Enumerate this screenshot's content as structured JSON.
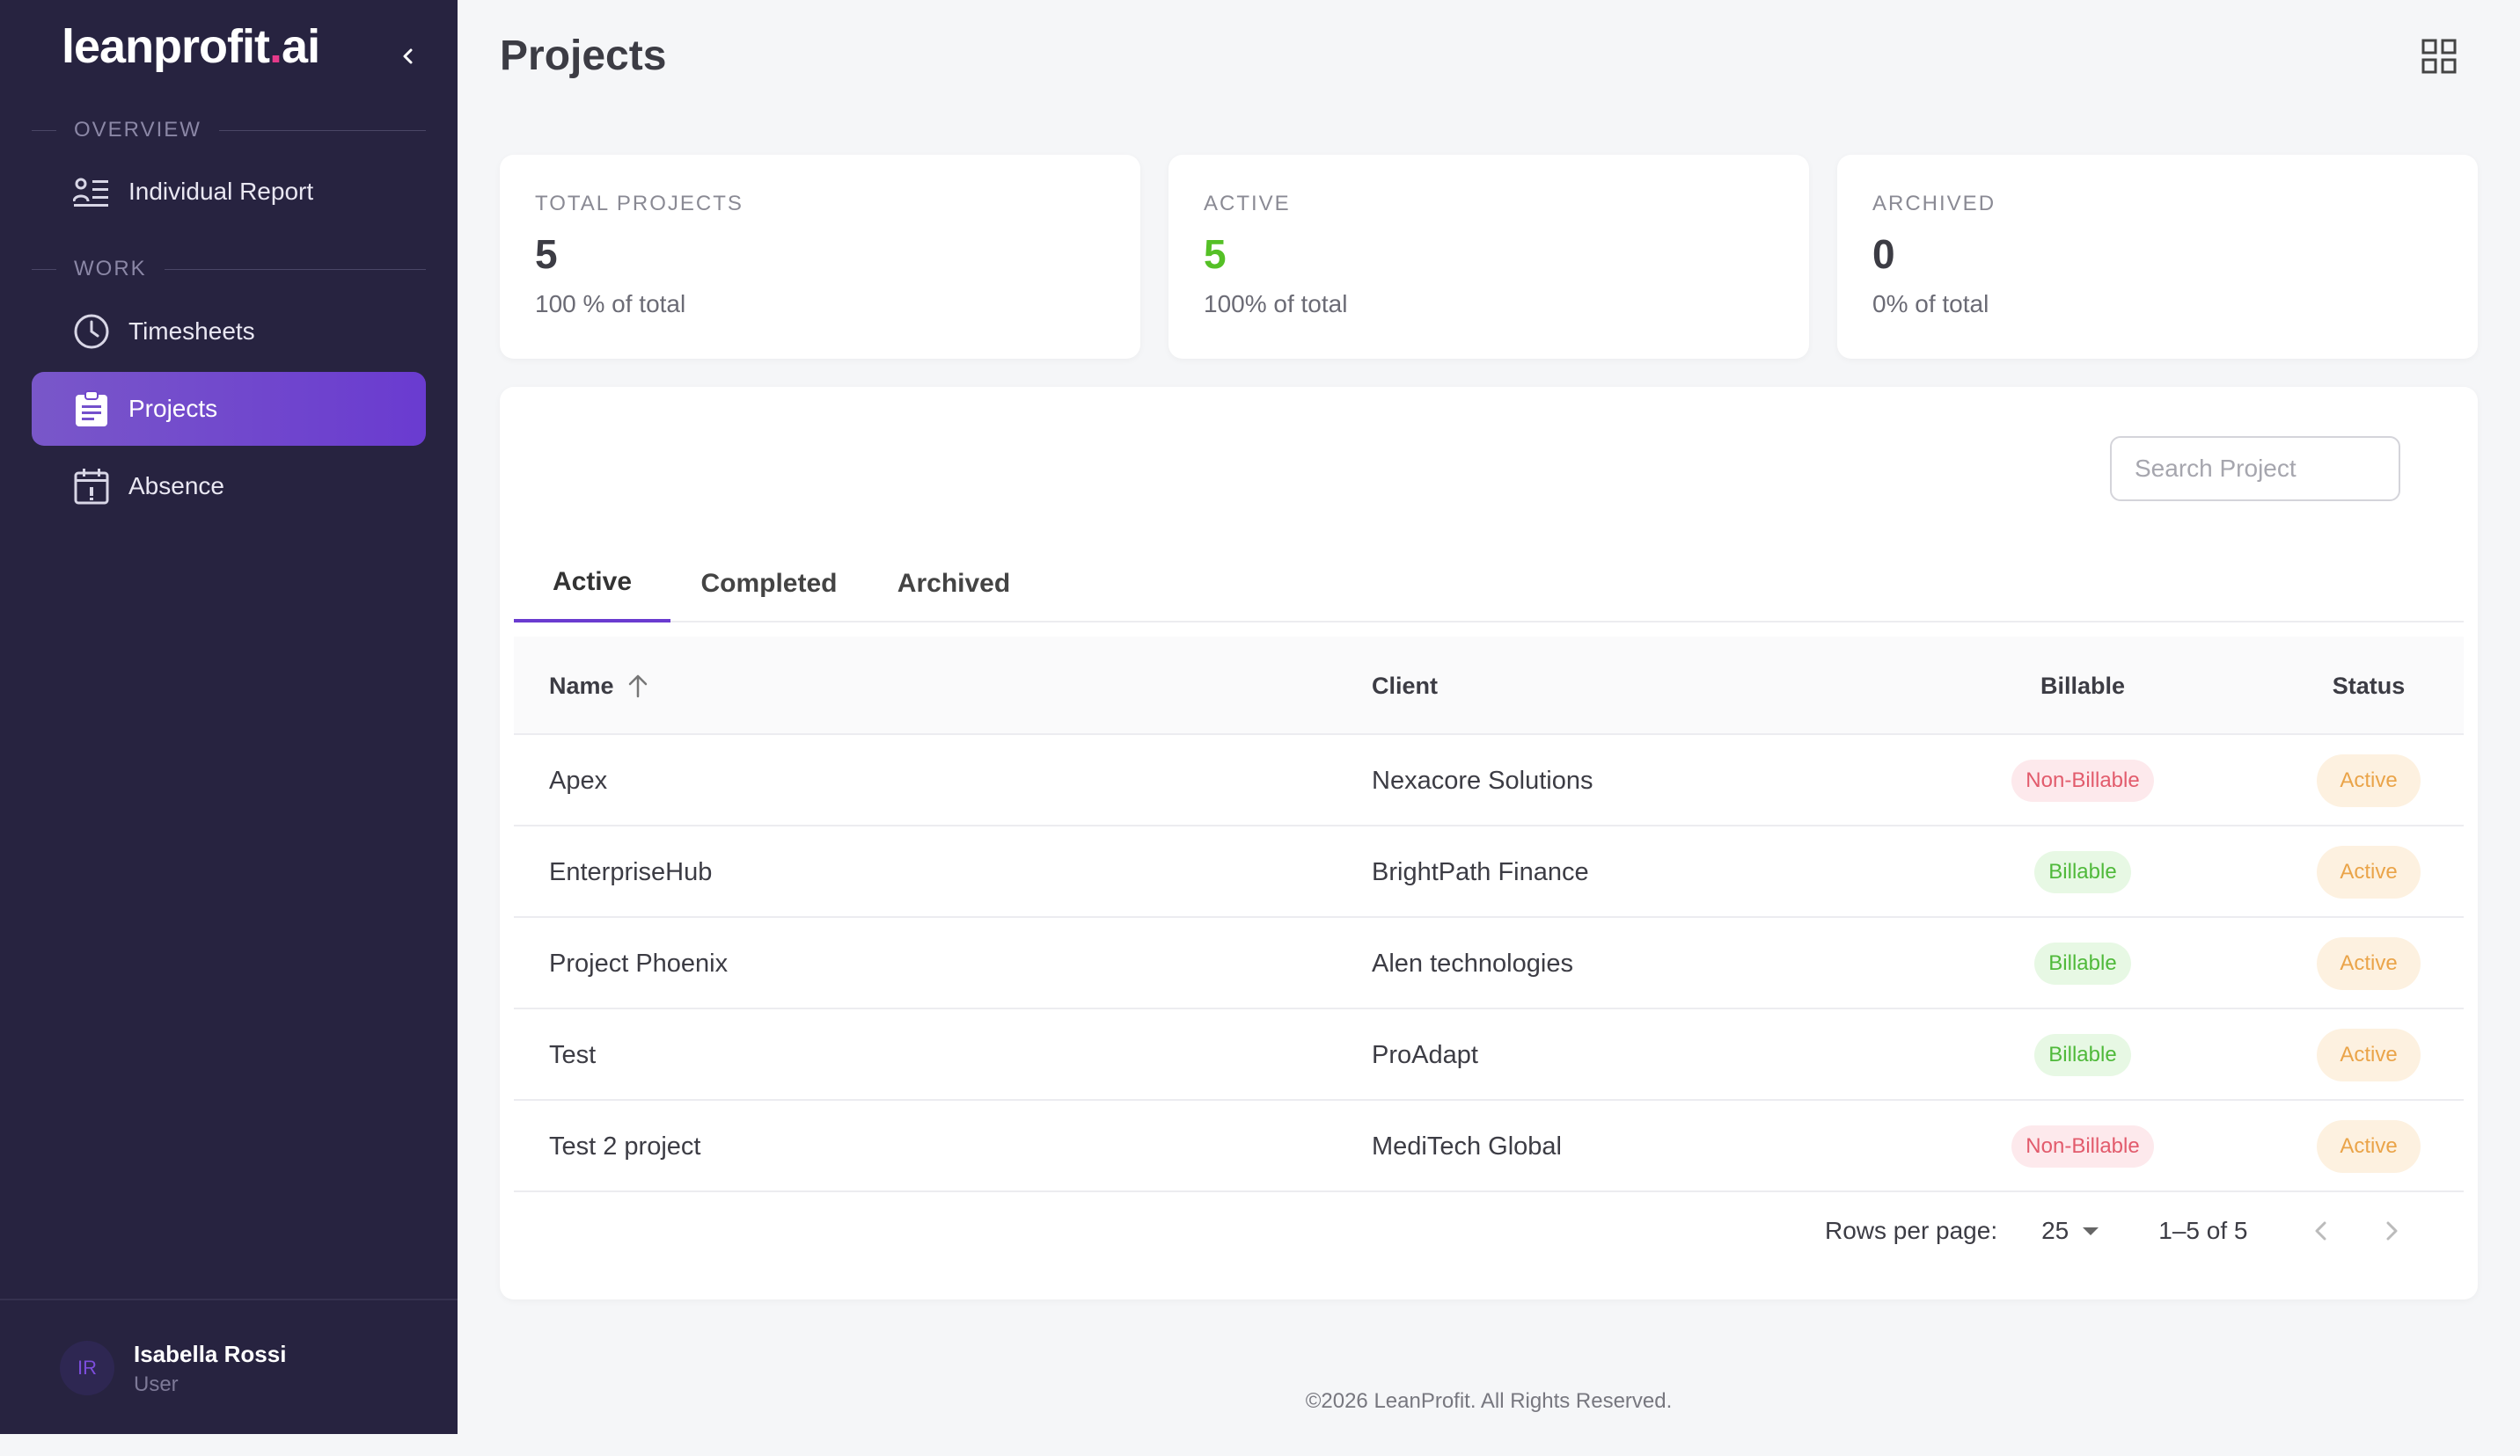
{
  "brand": {
    "name_main": "leanprofit",
    "name_dot": ".",
    "name_tld": "ai",
    "accent": "#e63a8a"
  },
  "sidebar": {
    "sections": [
      {
        "label": "OVERVIEW",
        "items": [
          {
            "label": "Individual Report",
            "icon": "report-list-icon"
          }
        ]
      },
      {
        "label": "WORK",
        "items": [
          {
            "label": "Timesheets",
            "icon": "clock-icon"
          },
          {
            "label": "Projects",
            "icon": "clipboard-icon",
            "active": true
          },
          {
            "label": "Absence",
            "icon": "calendar-icon"
          }
        ]
      }
    ],
    "user": {
      "initials": "IR",
      "name": "Isabella Rossi",
      "role": "User"
    }
  },
  "header": {
    "title": "Projects"
  },
  "stats": [
    {
      "key": "TOTAL PROJECTS",
      "value": "5",
      "sub": "100 % of total"
    },
    {
      "key": "ACTIVE",
      "value": "5",
      "sub": "100% of total",
      "color": "#55c026"
    },
    {
      "key": "ARCHIVED",
      "value": "0",
      "sub": "0% of total"
    }
  ],
  "search": {
    "placeholder": "Search Project",
    "value": ""
  },
  "tabs": [
    {
      "label": "Active",
      "active": true
    },
    {
      "label": "Completed"
    },
    {
      "label": "Archived"
    }
  ],
  "table": {
    "headers": {
      "name": "Name",
      "client": "Client",
      "billable": "Billable",
      "status": "Status"
    },
    "sort": "name-ascending",
    "rows": [
      {
        "name": "Apex",
        "client": "Nexacore Solutions",
        "billable": "Non-Billable",
        "status": "Active"
      },
      {
        "name": "EnterpriseHub",
        "client": "BrightPath Finance",
        "billable": "Billable",
        "status": "Active"
      },
      {
        "name": "Project Phoenix",
        "client": "Alen technologies",
        "billable": "Billable",
        "status": "Active"
      },
      {
        "name": "Test",
        "client": "ProAdapt",
        "billable": "Billable",
        "status": "Active"
      },
      {
        "name": "Test 2 project",
        "client": "MediTech Global",
        "billable": "Non-Billable",
        "status": "Active"
      }
    ]
  },
  "pagination": {
    "rows_label": "Rows per page:",
    "rows_value": "25",
    "range": "1–5 of 5"
  },
  "footer": {
    "text": "©2026 LeanProfit. All Rights Reserved."
  },
  "colors": {
    "sidebar_bg": "#272340",
    "active_nav": "#6a3bd0",
    "page_bg": "#f5f6f8"
  }
}
